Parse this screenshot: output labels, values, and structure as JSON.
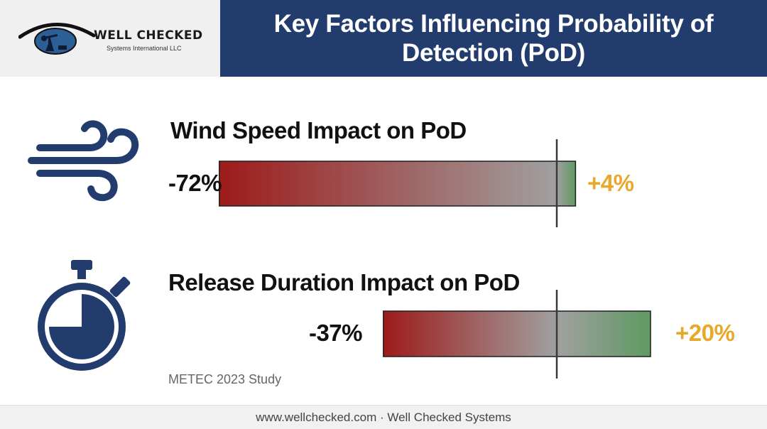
{
  "header": {
    "logo_name": "WELL CHECKED",
    "logo_tagline": "Systems International LLC",
    "title": "Key Factors Influencing Probability of Detection (PoD)"
  },
  "colors": {
    "header_bg": "#233c6e",
    "icon_blue": "#233c6e",
    "negative_red": "#9e1b1b",
    "neutral_gray": "#a0a0a0",
    "positive_green": "#5f9a62",
    "positive_label": "#e8a82b"
  },
  "chart_data": [
    {
      "type": "bar",
      "title": "Wind Speed Impact on PoD",
      "icon": "wind-icon",
      "min": -72,
      "max": 4,
      "min_label": "-72%",
      "max_label": "+4%"
    },
    {
      "type": "bar",
      "title": "Release Duration Impact on PoD",
      "icon": "stopwatch-icon",
      "min": -37,
      "max": 20,
      "min_label": "-37%",
      "max_label": "+20%"
    }
  ],
  "source_note": "METEC 2023 Study",
  "footer": {
    "text": "www.wellchecked.com · Well Checked Systems"
  }
}
